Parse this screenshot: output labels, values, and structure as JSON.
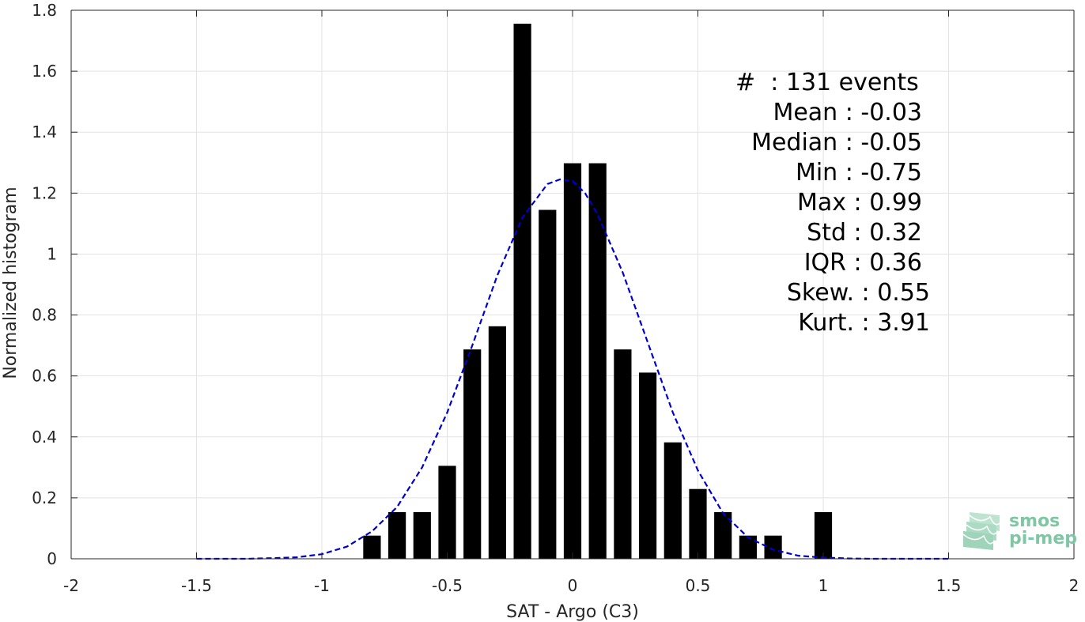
{
  "chart_data": {
    "type": "bar",
    "xlabel": "SAT - Argo (C3)",
    "ylabel": "Normalized histogram",
    "xlim": [
      -2,
      2
    ],
    "ylim": [
      0,
      1.8
    ],
    "grid": true,
    "xticks": [
      -2,
      -1.5,
      -1,
      -0.5,
      0,
      0.5,
      1,
      1.5,
      2
    ],
    "xtick_labels": [
      "-2",
      "-1.5",
      "-1",
      "-0.5",
      "0",
      "0.5",
      "1",
      "1.5",
      "2"
    ],
    "yticks": [
      0,
      0.2,
      0.4,
      0.6,
      0.8,
      1,
      1.2,
      1.4,
      1.6,
      1.8
    ],
    "ytick_labels": [
      "0",
      "0.2",
      "0.4",
      "0.6",
      "0.8",
      "1",
      "1.2",
      "1.4",
      "1.6",
      "1.8"
    ],
    "bar_width": 0.07,
    "bars": {
      "x": [
        -0.8,
        -0.7,
        -0.6,
        -0.5,
        -0.4,
        -0.3,
        -0.2,
        -0.1,
        0.0,
        0.1,
        0.2,
        0.3,
        0.4,
        0.5,
        0.6,
        0.7,
        0.8,
        1.0
      ],
      "values": [
        0.076,
        0.153,
        0.153,
        0.305,
        0.687,
        0.763,
        1.756,
        1.145,
        1.298,
        1.298,
        0.687,
        0.611,
        0.382,
        0.229,
        0.153,
        0.076,
        0.076,
        0.153
      ],
      "color": "#000000"
    },
    "fit_curve": {
      "style": "dashed",
      "color": "#0000cc",
      "x": [
        -1.5,
        -1.4,
        -1.3,
        -1.2,
        -1.1,
        -1.0,
        -0.9,
        -0.8,
        -0.7,
        -0.6,
        -0.5,
        -0.4,
        -0.3,
        -0.2,
        -0.1,
        -0.05,
        0.0,
        0.05,
        0.1,
        0.2,
        0.3,
        0.4,
        0.5,
        0.6,
        0.7,
        0.8,
        0.9,
        1.0,
        1.1,
        1.2,
        1.3,
        1.4,
        1.5
      ],
      "y": [
        0.0,
        0.0,
        0.0,
        0.002,
        0.005,
        0.015,
        0.04,
        0.09,
        0.17,
        0.3,
        0.48,
        0.7,
        0.93,
        1.12,
        1.23,
        1.245,
        1.24,
        1.2,
        1.13,
        0.94,
        0.71,
        0.48,
        0.29,
        0.15,
        0.07,
        0.03,
        0.01,
        0.004,
        0.001,
        0.0,
        0.0,
        0.0,
        0.0
      ]
    },
    "annotations": [
      "#  : 131 events",
      "Mean : -0.03",
      "Median : -0.05",
      "Min : -0.75",
      "Max : 0.99",
      "Std : 0.32",
      "IQR : 0.36",
      "Skew. : 0.55",
      "Kurt. : 3.91"
    ]
  },
  "logo": {
    "line1": "smos",
    "line2": "pi-mep"
  }
}
